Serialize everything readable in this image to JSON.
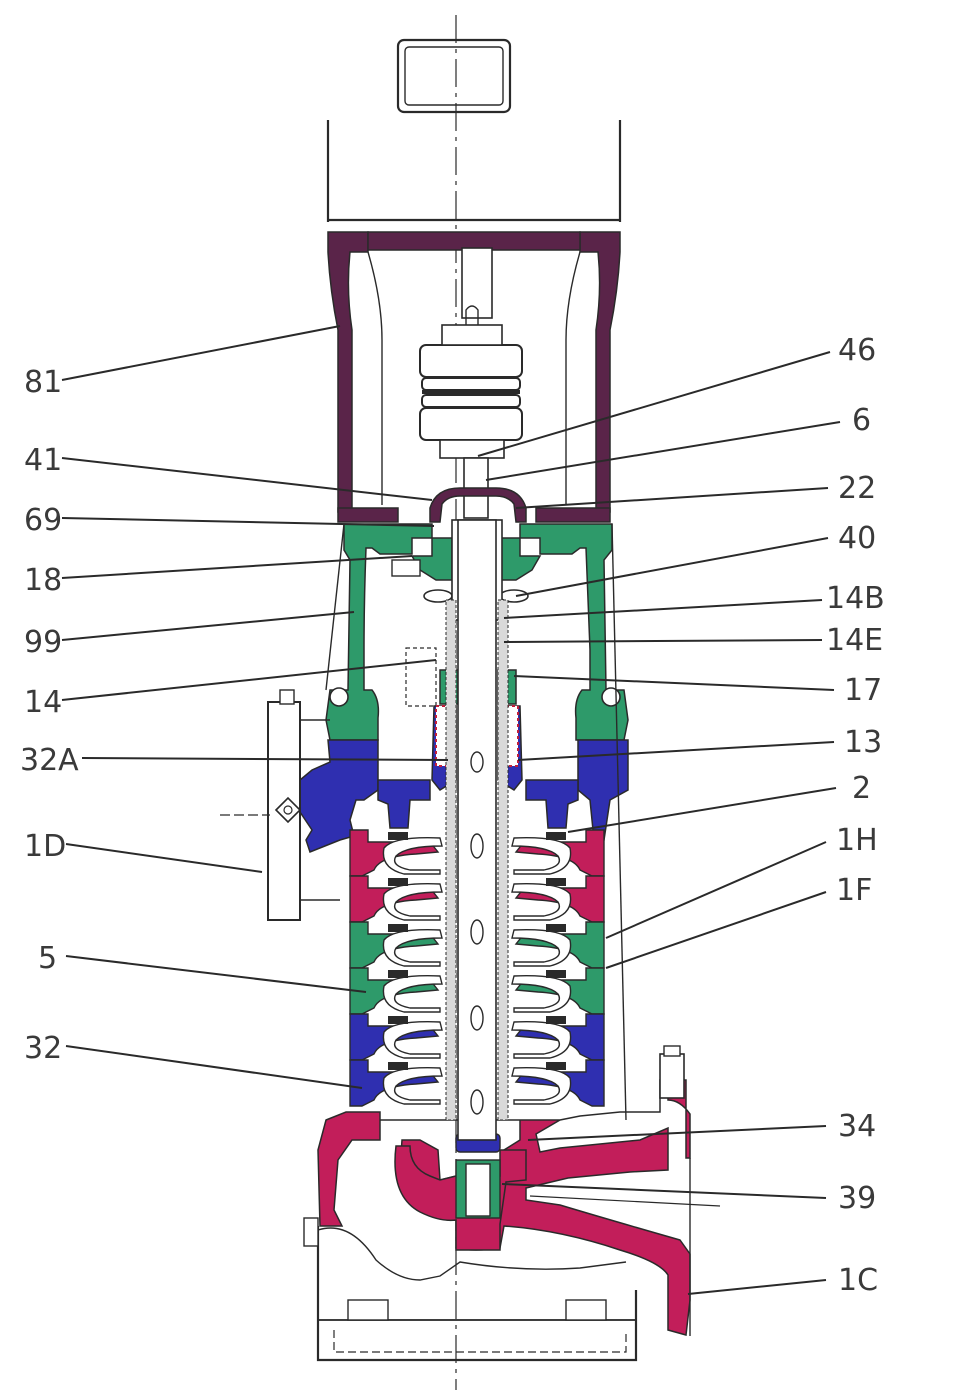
{
  "colors": {
    "motor_stool": "#5a2449",
    "bracket": "#2e9a6a",
    "discharge_head": "#2f2fb0",
    "bowl_red": "#c21e5a",
    "bowl_green": "#2e9a6a",
    "bowl_blue": "#2f2fb0",
    "base_red": "#c21e5a",
    "shaft_fill": "#d9d9d9",
    "seal": "#c21e3a"
  },
  "labels_left": [
    {
      "id": "81",
      "text": "81"
    },
    {
      "id": "41",
      "text": "41"
    },
    {
      "id": "69",
      "text": "69"
    },
    {
      "id": "18",
      "text": "18"
    },
    {
      "id": "99",
      "text": "99"
    },
    {
      "id": "14",
      "text": "14"
    },
    {
      "id": "32A",
      "text": "32A"
    },
    {
      "id": "1D",
      "text": "1D"
    },
    {
      "id": "5",
      "text": "5"
    },
    {
      "id": "32",
      "text": "32"
    }
  ],
  "labels_right": [
    {
      "id": "46",
      "text": "46"
    },
    {
      "id": "6",
      "text": "6"
    },
    {
      "id": "22",
      "text": "22"
    },
    {
      "id": "40",
      "text": "40"
    },
    {
      "id": "14B",
      "text": "14B"
    },
    {
      "id": "14E",
      "text": "14E"
    },
    {
      "id": "17",
      "text": "17"
    },
    {
      "id": "13",
      "text": "13"
    },
    {
      "id": "2",
      "text": "2"
    },
    {
      "id": "1H",
      "text": "1H"
    },
    {
      "id": "1F",
      "text": "1F"
    },
    {
      "id": "34",
      "text": "34"
    },
    {
      "id": "39",
      "text": "39"
    },
    {
      "id": "1C",
      "text": "1C"
    }
  ]
}
